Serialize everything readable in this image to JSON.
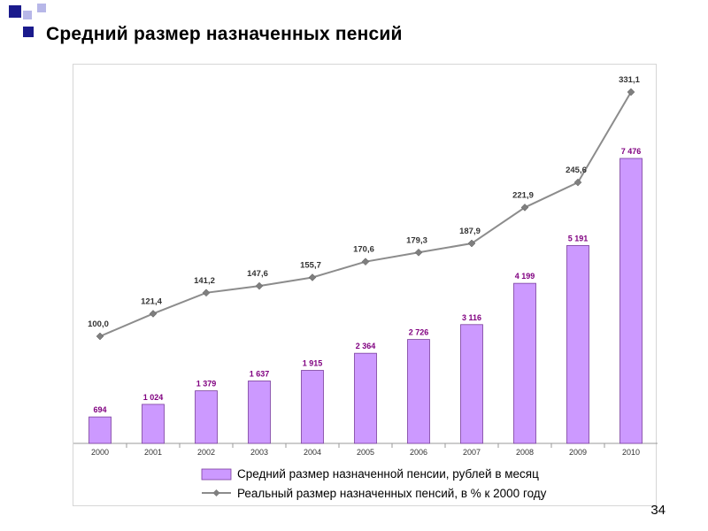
{
  "slide": {
    "title": "Средний размер назначенных пенсий",
    "page_number": "34"
  },
  "colors": {
    "bar_fill": "#cc99ff",
    "bar_stroke": "#7a3e9d",
    "bar_label": "#800080",
    "line": "#8c8c8c",
    "marker": "#7f7f7f",
    "corner_dark": "#1a1a8c",
    "corner_light": "#b7b7e8"
  },
  "chart_data": {
    "type": "bar+line",
    "categories": [
      "2000",
      "2001",
      "2002",
      "2003",
      "2004",
      "2005",
      "2006",
      "2007",
      "2008",
      "2009",
      "2010"
    ],
    "series": [
      {
        "name": "Средний размер назначенной пенсии, рублей в месяц",
        "type": "bar",
        "values": [
          694,
          1024,
          1379,
          1637,
          1915,
          2364,
          2726,
          3116,
          4199,
          5191,
          7476
        ],
        "labels": [
          "694",
          "1 024",
          "1 379",
          "1 637",
          "1 915",
          "2 364",
          "2 726",
          "3 116",
          "4 199",
          "5 191",
          "7 476"
        ]
      },
      {
        "name": "Реальный размер назначенных пенсий, в % к 2000 году",
        "type": "line",
        "values": [
          100.0,
          121.4,
          141.2,
          147.6,
          155.7,
          170.6,
          179.3,
          187.9,
          221.9,
          245.6,
          331.1
        ],
        "labels": [
          "100,0",
          "121,4",
          "141,2",
          "147,6",
          "155,7",
          "170,6",
          "179,3",
          "187,9",
          "221,9",
          "245,6",
          "331,1"
        ]
      }
    ],
    "legend_position": "bottom",
    "grid": false
  }
}
